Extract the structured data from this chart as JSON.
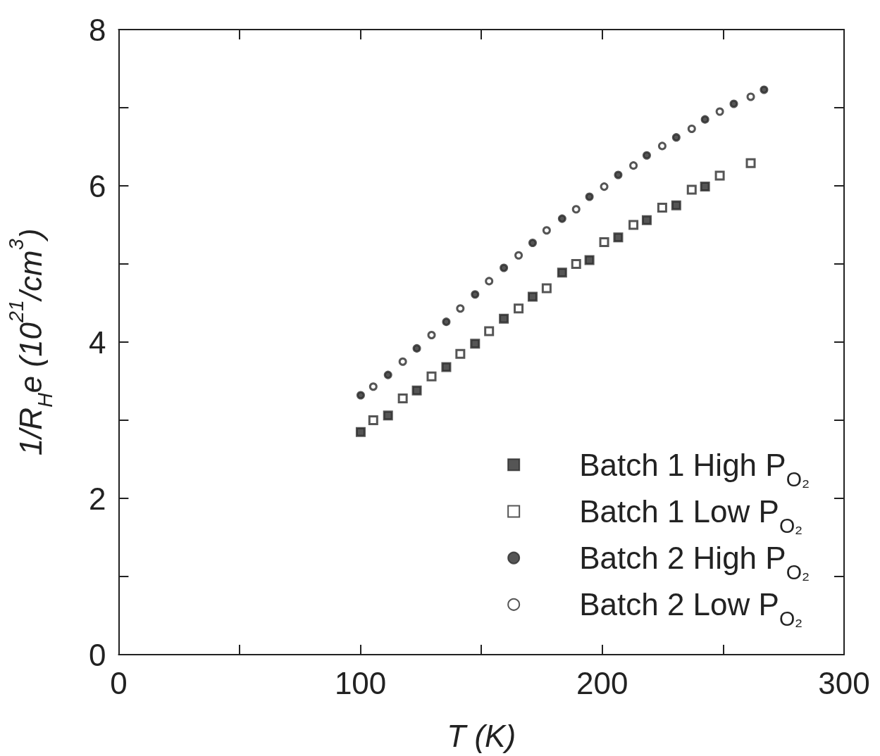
{
  "chart_data": {
    "type": "scatter",
    "xlabel": "T (K)",
    "ylabel": "1/R$_{H}$e (10$^{21}$/cm$^{3}$)",
    "xlim": [
      0,
      300
    ],
    "xticks": [
      0,
      {
        "value": 50,
        "label": null
      },
      100,
      {
        "value": 150,
        "label": null
      },
      200,
      {
        "value": 250,
        "label": null
      },
      300
    ],
    "ylim": [
      0,
      8
    ],
    "yticks": [
      0,
      {
        "value": 1,
        "label": null
      },
      2,
      {
        "value": 3,
        "label": null
      },
      4,
      {
        "value": 5,
        "label": null
      },
      6,
      {
        "value": 7,
        "label": null
      },
      8
    ],
    "grid": false,
    "legend": "bottom right",
    "series": [
      {
        "name": "Batch 1 High P$_{O₂}$",
        "color": "#2b2b2b",
        "marker": "square",
        "x": [
          100.1,
          111.4,
          123.3,
          135.5,
          147.4,
          159.3,
          171.2,
          183.4,
          194.7,
          206.6,
          218.4,
          230.6,
          242.5
        ],
        "values": [
          2.85,
          3.06,
          3.38,
          3.68,
          3.98,
          4.3,
          4.58,
          4.89,
          5.05,
          5.34,
          5.56,
          5.75,
          5.99
        ]
      },
      {
        "name": "Batch 1 Low P$_{O₂}$",
        "color": "#ffffff",
        "marker": "square",
        "x": [
          105.3,
          117.5,
          129.4,
          141.3,
          153.2,
          165.4,
          177.0,
          189.2,
          200.8,
          212.9,
          224.8,
          237.0,
          248.6,
          261.4
        ],
        "values": [
          3.0,
          3.28,
          3.56,
          3.85,
          4.14,
          4.43,
          4.69,
          5.0,
          5.28,
          5.5,
          5.72,
          5.95,
          6.13,
          6.29
        ]
      },
      {
        "name": "Batch 2 High P$_{O₂}$",
        "color": "#2b2b2b",
        "marker": "circle",
        "x": [
          100.1,
          111.4,
          123.3,
          135.5,
          147.4,
          159.3,
          171.2,
          183.4,
          194.7,
          206.6,
          218.4,
          230.6,
          242.5,
          254.4,
          266.9
        ],
        "values": [
          3.32,
          3.58,
          3.92,
          4.26,
          4.61,
          4.95,
          5.27,
          5.58,
          5.86,
          6.14,
          6.39,
          6.62,
          6.85,
          7.05,
          7.23
        ]
      },
      {
        "name": "Batch 2 Low P$_{O₂}$",
        "color": "#ffffff",
        "marker": "circle",
        "x": [
          105.3,
          117.5,
          129.4,
          141.3,
          153.2,
          165.4,
          177.0,
          189.2,
          200.8,
          212.9,
          224.8,
          237.0,
          248.6,
          261.4
        ],
        "values": [
          3.43,
          3.75,
          4.09,
          4.43,
          4.78,
          5.11,
          5.43,
          5.7,
          5.99,
          6.26,
          6.51,
          6.73,
          6.95,
          7.14
        ]
      }
    ]
  }
}
